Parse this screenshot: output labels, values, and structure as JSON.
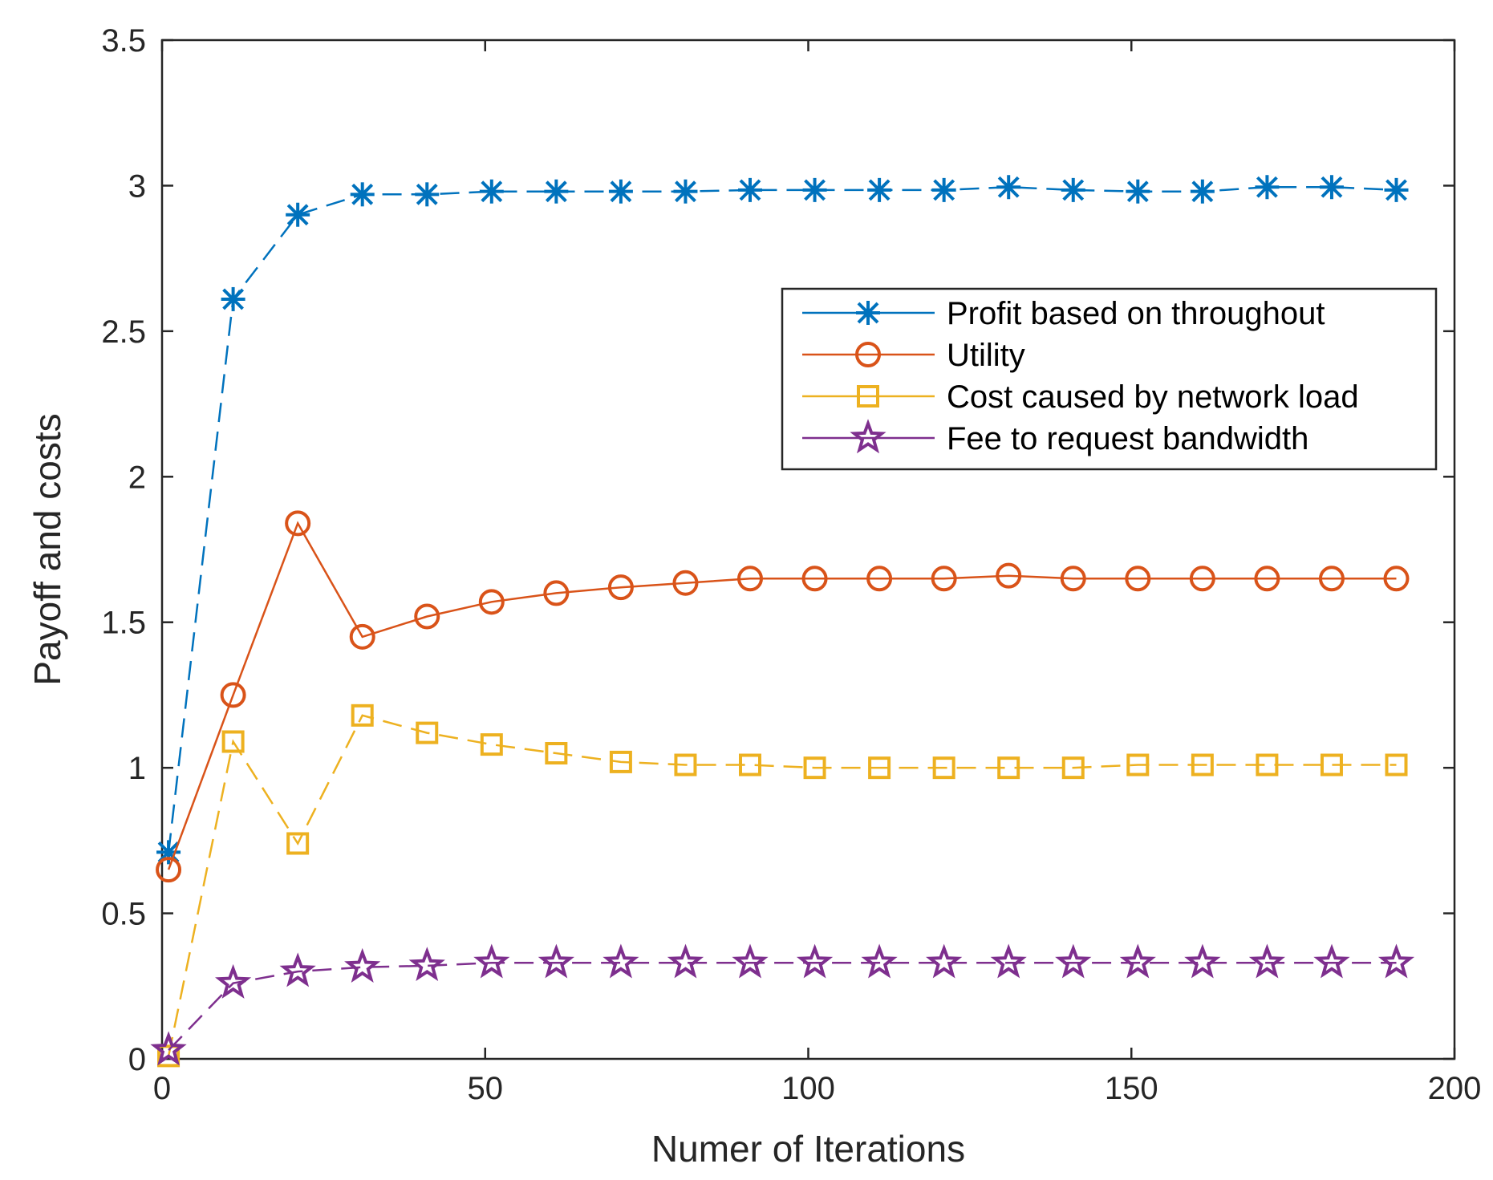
{
  "chart_data": {
    "type": "line",
    "title": "",
    "xlabel": "Numer of Iterations",
    "ylabel": "Payoff and costs",
    "xlim": [
      0,
      200
    ],
    "ylim": [
      0,
      3.5
    ],
    "xticks": [
      0,
      50,
      100,
      150,
      200
    ],
    "yticks": [
      0,
      0.5,
      1,
      1.5,
      2,
      2.5,
      3,
      3.5
    ],
    "xtick_labels": [
      "0",
      "50",
      "100",
      "150",
      "200"
    ],
    "ytick_labels": [
      "0",
      "0.5",
      "1",
      "1.5",
      "2",
      "2.5",
      "3",
      "3.5"
    ],
    "grid": false,
    "legend_position": "right, upper-middle",
    "x": [
      1,
      11,
      21,
      31,
      41,
      51,
      61,
      71,
      81,
      91,
      101,
      111,
      121,
      131,
      141,
      151,
      161,
      171,
      181,
      191
    ],
    "series": [
      {
        "name": "Profit based on throughout",
        "color": "#0072BD",
        "marker": "asterisk",
        "line": "dashed",
        "values": [
          0.71,
          2.61,
          2.9,
          2.97,
          2.97,
          2.98,
          2.98,
          2.98,
          2.98,
          2.985,
          2.985,
          2.985,
          2.985,
          2.995,
          2.985,
          2.98,
          2.98,
          2.995,
          2.995,
          2.985
        ]
      },
      {
        "name": "Utility",
        "color": "#D95319",
        "marker": "circle",
        "line": "solid",
        "values": [
          0.65,
          1.25,
          1.84,
          1.45,
          1.52,
          1.57,
          1.6,
          1.62,
          1.635,
          1.65,
          1.65,
          1.65,
          1.65,
          1.66,
          1.65,
          1.65,
          1.65,
          1.65,
          1.65,
          1.65
        ]
      },
      {
        "name": "Cost caused by network load",
        "color": "#EDB120",
        "marker": "square",
        "line": "dashed",
        "values": [
          0.01,
          1.09,
          0.74,
          1.18,
          1.12,
          1.08,
          1.05,
          1.02,
          1.01,
          1.01,
          1.0,
          1.0,
          1.0,
          1.0,
          1.0,
          1.01,
          1.01,
          1.01,
          1.01,
          1.01
        ]
      },
      {
        "name": "Fee to request bandwidth",
        "color": "#7E2F8E",
        "marker": "star",
        "line": "dashed",
        "values": [
          0.03,
          0.26,
          0.3,
          0.315,
          0.32,
          0.33,
          0.33,
          0.33,
          0.33,
          0.33,
          0.33,
          0.33,
          0.33,
          0.33,
          0.33,
          0.33,
          0.33,
          0.33,
          0.33,
          0.33
        ]
      }
    ]
  }
}
